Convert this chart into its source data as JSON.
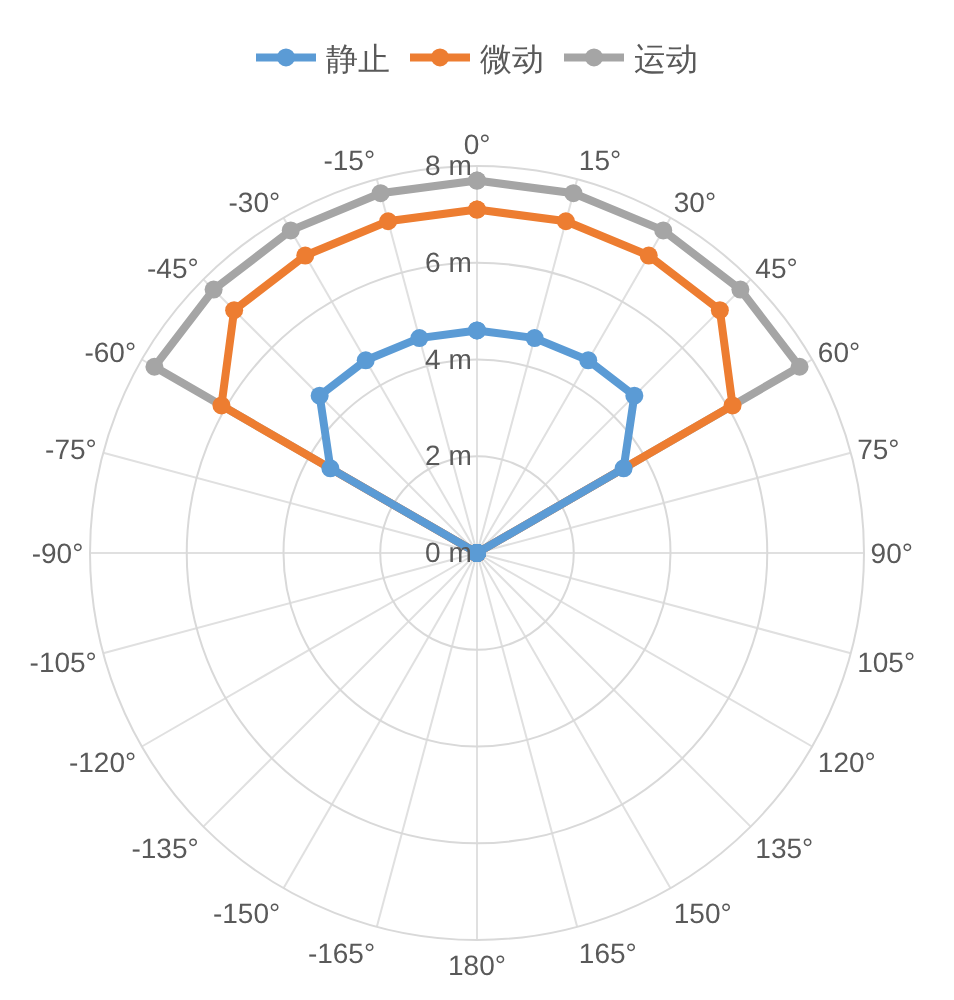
{
  "chart_data": {
    "type": "radar",
    "categories": [
      "0°",
      "15°",
      "30°",
      "45°",
      "60°",
      "75°",
      "90°",
      "105°",
      "120°",
      "135°",
      "150°",
      "165°",
      "180°",
      "-165°",
      "-150°",
      "-135°",
      "-120°",
      "-105°",
      "-90°",
      "-75°",
      "-60°",
      "-45°",
      "-30°",
      "-15°"
    ],
    "series": [
      {
        "name": "静止",
        "color": "#5b9bd5",
        "values": [
          4.6,
          4.6,
          4.6,
          4.6,
          3.5,
          0,
          0,
          0,
          0,
          0,
          0,
          0,
          0,
          0,
          0,
          0,
          0,
          0,
          0,
          0,
          3.5,
          4.6,
          4.6,
          4.6
        ]
      },
      {
        "name": "微动",
        "color": "#ed7d31",
        "values": [
          7.1,
          7.1,
          7.1,
          7.1,
          6.1,
          0,
          0,
          0,
          0,
          0,
          0,
          0,
          0,
          0,
          0,
          0,
          0,
          0,
          0,
          0,
          6.1,
          7.1,
          7.1,
          7.1
        ]
      },
      {
        "name": "运动",
        "color": "#a5a5a5",
        "values": [
          7.7,
          7.7,
          7.7,
          7.7,
          7.7,
          0,
          0,
          0,
          0,
          0,
          0,
          0,
          0,
          0,
          0,
          0,
          0,
          0,
          0,
          0,
          7.7,
          7.7,
          7.7,
          7.7
        ]
      }
    ],
    "ylim": [
      0,
      8
    ],
    "yticks": [
      {
        "value": 0,
        "label": "0 m"
      },
      {
        "value": 2,
        "label": "2 m"
      },
      {
        "value": 4,
        "label": "4 m"
      },
      {
        "value": 6,
        "label": "6 m"
      },
      {
        "value": 8,
        "label": "8 m"
      }
    ],
    "grid": true,
    "legend": "top",
    "marker": "circle",
    "line_style": "solid"
  }
}
